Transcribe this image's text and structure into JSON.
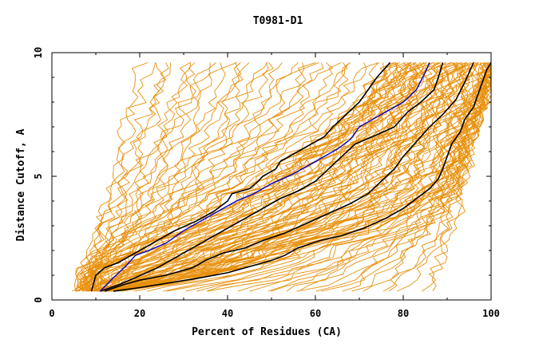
{
  "chart_data": {
    "type": "line",
    "title": "T0981-D1",
    "xlabel": "Percent of Residues (CA)",
    "ylabel": "Distance Cutoff, A",
    "xlim": [
      0,
      100
    ],
    "ylim": [
      0,
      10
    ],
    "x_ticks": [
      "0",
      "20",
      "40",
      "60",
      "80",
      "100"
    ],
    "y_ticks": [
      "0",
      "5",
      "10"
    ],
    "grid": false,
    "colors": {
      "background_models": "#e8900c",
      "highlight": "#0000cc",
      "reference": "#000000"
    },
    "highlight_series": {
      "x": [
        11,
        14,
        17,
        19,
        22,
        26,
        30,
        34,
        38,
        42,
        46,
        50,
        55,
        60,
        65,
        68,
        70,
        72,
        75,
        80,
        83,
        85,
        86
      ],
      "y": [
        0.35,
        0.9,
        1.4,
        1.8,
        2.0,
        2.3,
        2.8,
        3.2,
        3.6,
        4.0,
        4.3,
        4.7,
        5.1,
        5.6,
        6.1,
        6.5,
        7.0,
        7.2,
        7.5,
        8.0,
        8.5,
        9.2,
        9.6
      ]
    },
    "reference_series": [
      {
        "x": [
          9,
          10,
          12,
          15,
          18,
          21,
          24,
          28,
          33,
          37,
          40,
          41,
          45,
          47,
          48,
          51,
          52,
          55,
          58,
          62,
          64,
          67,
          70,
          72,
          74,
          77
        ],
        "y": [
          0.35,
          1.0,
          1.3,
          1.5,
          1.8,
          2.1,
          2.4,
          2.8,
          3.2,
          3.6,
          4.0,
          4.3,
          4.5,
          4.8,
          5.0,
          5.3,
          5.6,
          5.9,
          6.2,
          6.6,
          7.0,
          7.5,
          8.0,
          8.5,
          9.0,
          9.6
        ]
      },
      {
        "x": [
          11,
          15,
          19,
          24,
          29,
          34,
          38,
          42,
          47,
          52,
          56,
          60,
          63,
          66,
          69,
          73,
          78,
          81,
          84,
          87,
          88,
          89
        ],
        "y": [
          0.35,
          0.6,
          0.9,
          1.3,
          1.8,
          2.3,
          2.7,
          3.1,
          3.6,
          4.1,
          4.4,
          4.8,
          5.3,
          5.8,
          6.3,
          6.6,
          7.0,
          7.6,
          8.0,
          8.5,
          9.0,
          9.6
        ]
      },
      {
        "x": [
          12,
          16,
          20,
          26,
          32,
          35,
          39,
          44,
          48,
          53,
          58,
          63,
          68,
          72,
          75,
          78,
          80,
          83,
          86,
          89,
          92,
          94,
          96
        ],
        "y": [
          0.35,
          0.6,
          0.8,
          1.0,
          1.3,
          1.6,
          1.9,
          2.1,
          2.4,
          2.7,
          3.1,
          3.5,
          3.9,
          4.3,
          4.8,
          5.3,
          5.8,
          6.4,
          7.0,
          7.5,
          8.1,
          8.8,
          9.6
        ]
      },
      {
        "x": [
          14,
          20,
          27,
          34,
          40,
          46,
          50,
          53,
          56,
          61,
          66,
          71,
          76,
          80,
          83,
          86,
          88,
          89,
          90,
          91,
          93,
          94,
          96,
          97,
          98,
          99,
          100
        ],
        "y": [
          0.35,
          0.5,
          0.7,
          0.9,
          1.1,
          1.4,
          1.6,
          1.8,
          2.1,
          2.4,
          2.6,
          2.9,
          3.3,
          3.7,
          4.1,
          4.5,
          4.9,
          5.3,
          5.8,
          6.3,
          6.8,
          7.3,
          7.8,
          8.3,
          8.8,
          9.3,
          9.6
        ]
      }
    ]
  }
}
